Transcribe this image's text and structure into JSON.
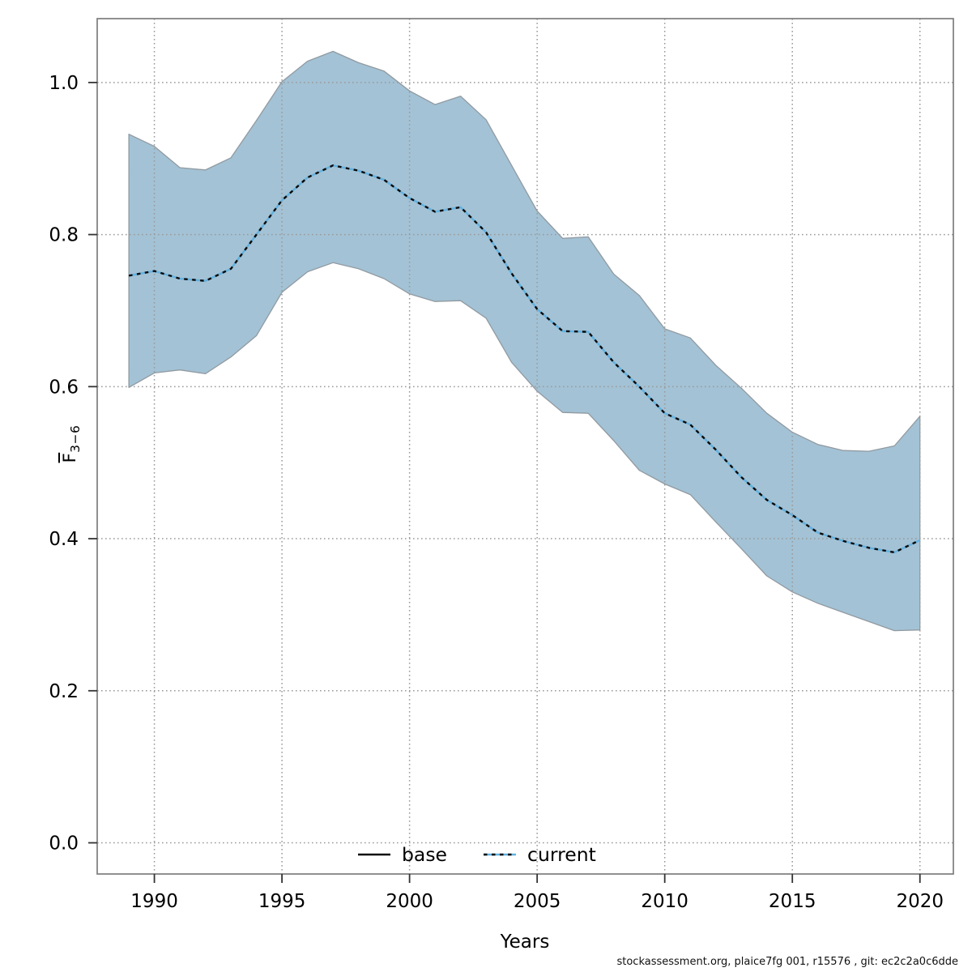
{
  "footer": {
    "text": "stockassessment.org, plaice7fg 001, r15576 , git: ec2c2a0c6dde"
  },
  "colors": {
    "band_fill": "#a3c2d5",
    "band_edge": "#919aa1",
    "current_blue": "#62b1e0",
    "line_black": "#0a0a0a",
    "grid": "#9a9a9a",
    "box": "#7d7d7d",
    "tick": "#333333"
  },
  "legend": [
    {
      "label": "base",
      "line_style": "solid",
      "line_color": "#0a0a0a"
    },
    {
      "label": "current",
      "line_style": "dotted",
      "line_color": "#62b1e0"
    }
  ],
  "chart_data": {
    "type": "line",
    "title": "",
    "xlabel": "Years",
    "ylabel_main": "F",
    "ylabel_sub": "3−6",
    "grid": "dotted",
    "legend_position": "bottom-center-inside",
    "x_range": [
      1987.76,
      2021.31
    ],
    "y_range": [
      -0.041,
      1.084
    ],
    "x_ticks": [
      {
        "label": "1990",
        "value": 1990
      },
      {
        "label": "1995",
        "value": 1995
      },
      {
        "label": "2000",
        "value": 2000
      },
      {
        "label": "2005",
        "value": 2005
      },
      {
        "label": "2010",
        "value": 2010
      },
      {
        "label": "2015",
        "value": 2015
      },
      {
        "label": "2020",
        "value": 2020
      }
    ],
    "y_ticks": [
      {
        "label": "0.0",
        "value": 0.0
      },
      {
        "label": "0.2",
        "value": 0.2
      },
      {
        "label": "0.4",
        "value": 0.4
      },
      {
        "label": "0.6",
        "value": 0.6
      },
      {
        "label": "0.8",
        "value": 0.8
      },
      {
        "label": "1.0",
        "value": 1.0
      }
    ],
    "x": [
      1989,
      1990,
      1991,
      1992,
      1993,
      1994,
      1995,
      1996,
      1997,
      1998,
      1999,
      2000,
      2001,
      2002,
      2003,
      2004,
      2005,
      2006,
      2007,
      2008,
      2009,
      2010,
      2011,
      2012,
      2013,
      2014,
      2015,
      2016,
      2017,
      2018,
      2019,
      2020
    ],
    "series": [
      {
        "name": "current",
        "values": [
          0.746,
          0.752,
          0.742,
          0.739,
          0.755,
          0.8,
          0.845,
          0.875,
          0.891,
          0.884,
          0.872,
          0.848,
          0.83,
          0.836,
          0.803,
          0.749,
          0.702,
          0.673,
          0.672,
          0.632,
          0.6,
          0.565,
          0.55,
          0.517,
          0.481,
          0.451,
          0.431,
          0.408,
          0.397,
          0.388,
          0.382,
          0.398
        ]
      }
    ],
    "band": {
      "name": "confidence-interval",
      "low": [
        0.599,
        0.618,
        0.622,
        0.617,
        0.639,
        0.667,
        0.724,
        0.751,
        0.763,
        0.755,
        0.742,
        0.722,
        0.712,
        0.713,
        0.69,
        0.632,
        0.594,
        0.566,
        0.565,
        0.529,
        0.49,
        0.472,
        0.458,
        0.422,
        0.387,
        0.351,
        0.33,
        0.315,
        0.303,
        0.291,
        0.279,
        0.28
      ],
      "high": [
        0.932,
        0.916,
        0.888,
        0.885,
        0.901,
        0.95,
        1.001,
        1.028,
        1.041,
        1.026,
        1.015,
        0.989,
        0.971,
        0.982,
        0.951,
        0.891,
        0.831,
        0.795,
        0.797,
        0.748,
        0.72,
        0.676,
        0.664,
        0.628,
        0.598,
        0.565,
        0.54,
        0.524,
        0.516,
        0.515,
        0.522,
        0.561
      ]
    }
  }
}
